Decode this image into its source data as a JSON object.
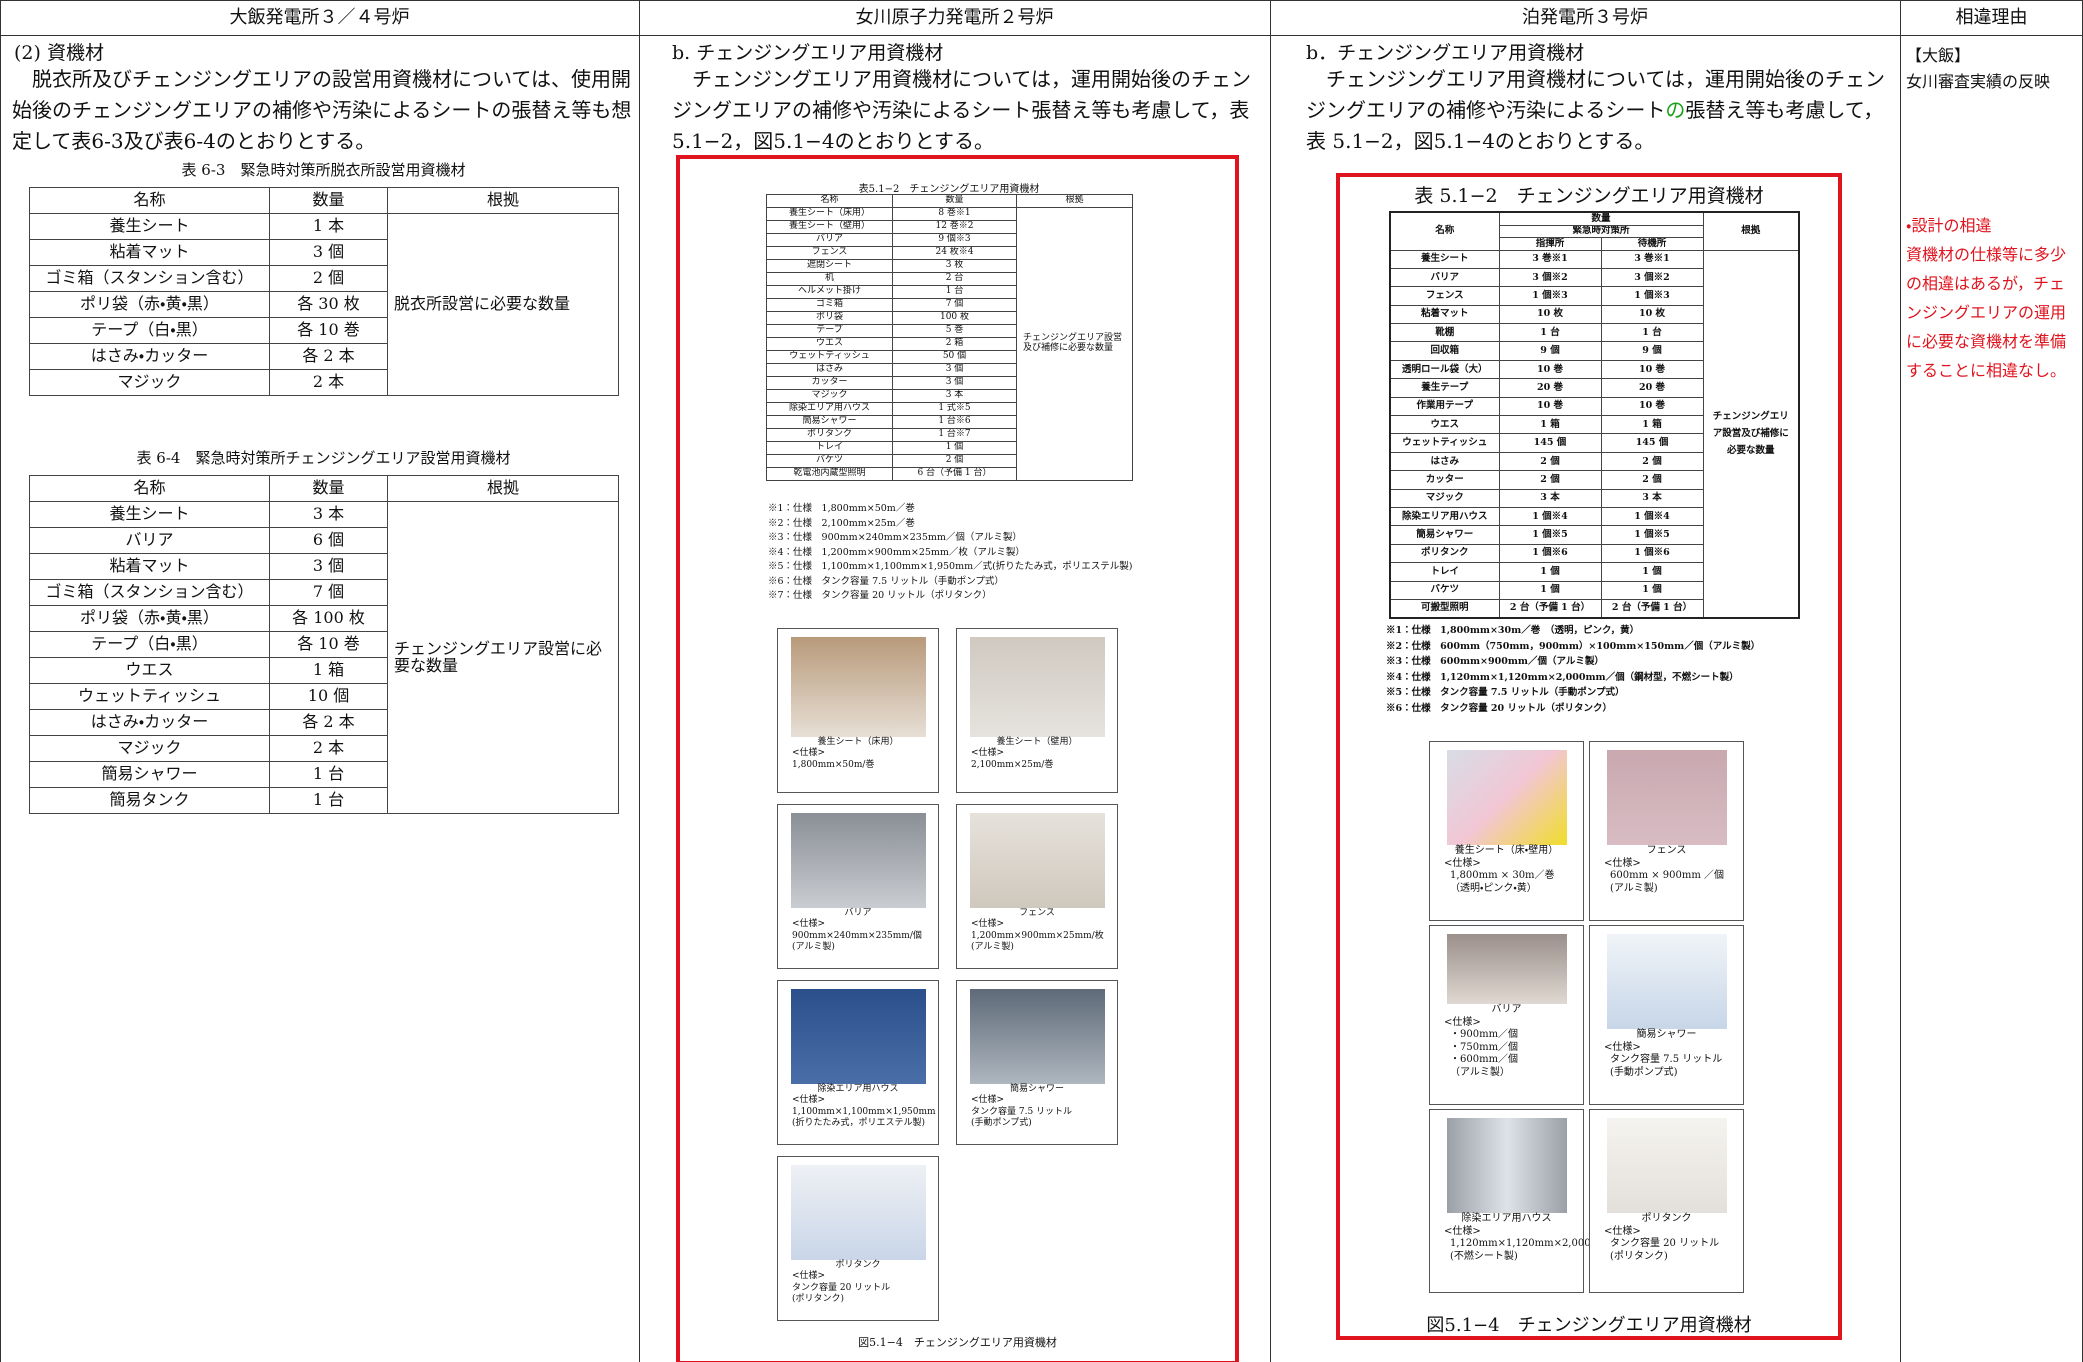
{
  "header": {
    "columns": [
      "大飯発電所３／４号炉",
      "女川原子力発電所２号炉",
      "泊発電所３号炉",
      "相違理由"
    ]
  },
  "ohi": {
    "heading": "(2) 資機材",
    "paragraph": "脱衣所及びチェンジングエリアの設営用資機材については、使用開始後のチェンジングエリアの補修や汚染によるシートの張替え等も想定して表6-3及び表6-4のとおりとする。",
    "tables": [
      {
        "caption": "表 6-3　緊急時対策所脱衣所設営用資機材",
        "headers": [
          "名称",
          "数量",
          "根拠"
        ],
        "basis": "脱衣所設営に必要な数量",
        "rows": [
          [
            "養生シート",
            "1 本"
          ],
          [
            "粘着マット",
            "3 個"
          ],
          [
            "ゴミ箱（スタンション含む）",
            "2 個"
          ],
          [
            "ポリ袋（赤・黄・黒）",
            "各 30 枚"
          ],
          [
            "テープ（白・黒）",
            "各 10 巻"
          ],
          [
            "はさみ・カッター",
            "各 2 本"
          ],
          [
            "マジック",
            "2 本"
          ]
        ]
      },
      {
        "caption": "表 6-4　緊急時対策所チェンジングエリア設営用資機材",
        "headers": [
          "名称",
          "数量",
          "根拠"
        ],
        "basis": "チェンジングエリア設営に必要な数量",
        "rows": [
          [
            "養生シート",
            "3 本"
          ],
          [
            "バリア",
            "6 個"
          ],
          [
            "粘着マット",
            "3 個"
          ],
          [
            "ゴミ箱（スタンション含む）",
            "7 個"
          ],
          [
            "ポリ袋（赤・黄・黒）",
            "各 100 枚"
          ],
          [
            "テープ（白・黒）",
            "各 10 巻"
          ],
          [
            "ウエス",
            "1 箱"
          ],
          [
            "ウェットティッシュ",
            "10 個"
          ],
          [
            "はさみ・カッター",
            "各 2 本"
          ],
          [
            "マジック",
            "2 本"
          ],
          [
            "簡易シャワー",
            "1 台"
          ],
          [
            "簡易タンク",
            "1 台"
          ]
        ]
      }
    ]
  },
  "onagawa": {
    "heading": "b. チェンジングエリア用資機材",
    "paragraph": "チェンジングエリア用資機材については，運用開始後のチェンジングエリアの補修や汚染によるシート張替え等も考慮して，表5.1−2，図5.1−4のとおりとする。",
    "table": {
      "caption": "表5.1−2　チェンジングエリア用資機材",
      "headers": [
        "名称",
        "数量",
        "根拠"
      ],
      "basis": "チェンジングエリア設営及び補修に必要な数量",
      "rows": [
        [
          "養生シート（床用）",
          "8 巻※1"
        ],
        [
          "養生シート（壁用）",
          "12 巻※2"
        ],
        [
          "バリア",
          "9 個※3"
        ],
        [
          "フェンス",
          "24 枚※4"
        ],
        [
          "遮閉シート",
          "3 枚"
        ],
        [
          "机",
          "2 台"
        ],
        [
          "ヘルメット掛け",
          "1 台"
        ],
        [
          "ゴミ箱",
          "7 個"
        ],
        [
          "ポリ袋",
          "100 枚"
        ],
        [
          "テープ",
          "5 巻"
        ],
        [
          "ウエス",
          "2 箱"
        ],
        [
          "ウェットティッシュ",
          "50 個"
        ],
        [
          "はさみ",
          "3 個"
        ],
        [
          "カッター",
          "3 個"
        ],
        [
          "マジック",
          "3 本"
        ],
        [
          "除染エリア用ハウス",
          "1 式※5"
        ],
        [
          "簡易シャワー",
          "1 台※6"
        ],
        [
          "ポリタンク",
          "1 台※7"
        ],
        [
          "トレイ",
          "1 個"
        ],
        [
          "バケツ",
          "2 個"
        ],
        [
          "乾電池内蔵型照明",
          "6 台（予備 1 台）"
        ]
      ]
    },
    "notes": [
      "※1：仕様　1,800mm×50m／巻",
      "※2：仕様　2,100mm×25m／巻",
      "※3：仕様　900mm×240mm×235mm／個（アルミ製）",
      "※4：仕様　1,200mm×900mm×25mm／枚（アルミ製）",
      "※5：仕様　1,100mm×1,100mm×1,950mm／式(折りたたみ式，ポリエステル製)",
      "※6：仕様　タンク容量 7.5 リットル（手動ポンプ式）",
      "※7：仕様　タンク容量 20 リットル（ポリタンク）"
    ],
    "photos": [
      {
        "name": "養生シート（床用）",
        "spec_label": "<仕様>",
        "spec": [
          "1,800mm×50m/巻"
        ]
      },
      {
        "name": "養生シート（壁用）",
        "spec_label": "<仕様>",
        "spec": [
          "2,100mm×25m/巻"
        ]
      },
      {
        "name": "バリア",
        "spec_label": "<仕様>",
        "spec": [
          "900mm×240mm×235mm/個",
          "(アルミ製)"
        ]
      },
      {
        "name": "フェンス",
        "spec_label": "<仕様>",
        "spec": [
          "1,200mm×900mm×25mm/枚",
          "(アルミ製)"
        ]
      },
      {
        "name": "除染エリア用ハウス",
        "spec_label": "<仕様>",
        "spec": [
          "1,100mm×1,100mm×1,950mm",
          "(折りたたみ式，ポリエステル製)"
        ]
      },
      {
        "name": "簡易シャワー",
        "spec_label": "<仕様>",
        "spec": [
          "タンク容量 7.5 リットル",
          "(手動ポンプ式)"
        ]
      },
      {
        "name": "ポリタンク",
        "spec_label": "<仕様>",
        "spec": [
          "タンク容量 20 リットル",
          "(ポリタンク)"
        ]
      }
    ],
    "figure_caption": "図5.1−4　チェンジングエリア用資機材"
  },
  "tomari": {
    "heading": "b．チェンジングエリア用資機材",
    "paragraph": [
      "チェンジングエリア用資機材については，運用開始後のチェンジングエリアの補修や汚染によるシート",
      "の",
      "張替え等も考慮して，表 5.1−2，図5.1−4のとおりとする。"
    ],
    "table": {
      "caption": "表 5.1−2　チェンジングエリア用資機材",
      "headers": [
        "名称",
        "数量",
        "緊急時対策所",
        "指揮所",
        "待機所",
        "根拠"
      ],
      "basis": "チェンジングエリア設営及び補修に必要な数量",
      "rows": [
        [
          "養生シート",
          "3 巻※1",
          "3 巻※1"
        ],
        [
          "バリア",
          "3 個※2",
          "3 個※2"
        ],
        [
          "フェンス",
          "1 個※3",
          "1 個※3"
        ],
        [
          "粘着マット",
          "10 枚",
          "10 枚"
        ],
        [
          "靴棚",
          "1 台",
          "1 台"
        ],
        [
          "回収箱",
          "9 個",
          "9 個"
        ],
        [
          "透明ロール袋（大）",
          "10 巻",
          "10 巻"
        ],
        [
          "養生テープ",
          "20 巻",
          "20 巻"
        ],
        [
          "作業用テープ",
          "10 巻",
          "10 巻"
        ],
        [
          "ウエス",
          "1 箱",
          "1 箱"
        ],
        [
          "ウェットティッシュ",
          "145 個",
          "145 個"
        ],
        [
          "はさみ",
          "2 個",
          "2 個"
        ],
        [
          "カッター",
          "2 個",
          "2 個"
        ],
        [
          "マジック",
          "3 本",
          "3 本"
        ],
        [
          "除染エリア用ハウス",
          "1 個※4",
          "1 個※4"
        ],
        [
          "簡易シャワー",
          "1 個※5",
          "1 個※5"
        ],
        [
          "ポリタンク",
          "1 個※6",
          "1 個※6"
        ],
        [
          "トレイ",
          "1 個",
          "1 個"
        ],
        [
          "バケツ",
          "1 個",
          "1 個"
        ],
        [
          "可搬型照明",
          "2 台（予備 1 台）",
          "2 台（予備 1 台）"
        ]
      ]
    },
    "notes": [
      "※1：仕様　1,800mm×30m／巻　（透明，ピンク，黄）",
      "※2：仕様　600mm（750mm，900mm）×100mm×150mm／個（アルミ製）",
      "※3：仕様　600mm×900mm／個（アルミ製）",
      "※4：仕様　1,120mm×1,120mm×2,000mm／個（鋼材型，不燃シート製）",
      "※5：仕様　タンク容量 7.5 リットル（手動ポンプ式）",
      "※6：仕様　タンク容量 20 リットル（ポリタンク）"
    ],
    "photos": [
      {
        "name": "養生シート（床・壁用）",
        "spec_label": "<仕様>",
        "spec": [
          "1,800mm × 30m／巻",
          "（透明・ピンク・黄）"
        ]
      },
      {
        "name": "フェンス",
        "spec_label": "<仕様>",
        "spec": [
          "600mm × 900mm ／個",
          "(アルミ製)"
        ]
      },
      {
        "name": "バリア",
        "spec_label": "<仕様>",
        "spec": [
          "・900mm／個",
          "・750mm／個",
          "・600mm／個",
          "（アルミ製）"
        ]
      },
      {
        "name": "簡易シャワー",
        "spec_label": "<仕様>",
        "spec": [
          "タンク容量 7.5 リットル",
          "(手動ポンプ式)"
        ]
      },
      {
        "name": "除染エリア用ハウス",
        "spec_label": "<仕様>",
        "spec": [
          "1,120mm×1,120mm×2,000mm",
          "(不燃シート製)"
        ]
      },
      {
        "name": "ポリタンク",
        "spec_label": "<仕様>",
        "spec": [
          "タンク容量 20 リットル",
          "(ポリタンク)"
        ]
      }
    ],
    "figure_caption": "図5.1−4　チェンジングエリア用資機材"
  },
  "reason": {
    "label": "【大飯】",
    "note": "女川審査実績の反映",
    "design_title": "・設計の相違",
    "design_text": "資機材の仕様等に多少の相違はあるが，チェンジングエリアの運用に必要な資機材を準備することに相違なし。"
  }
}
